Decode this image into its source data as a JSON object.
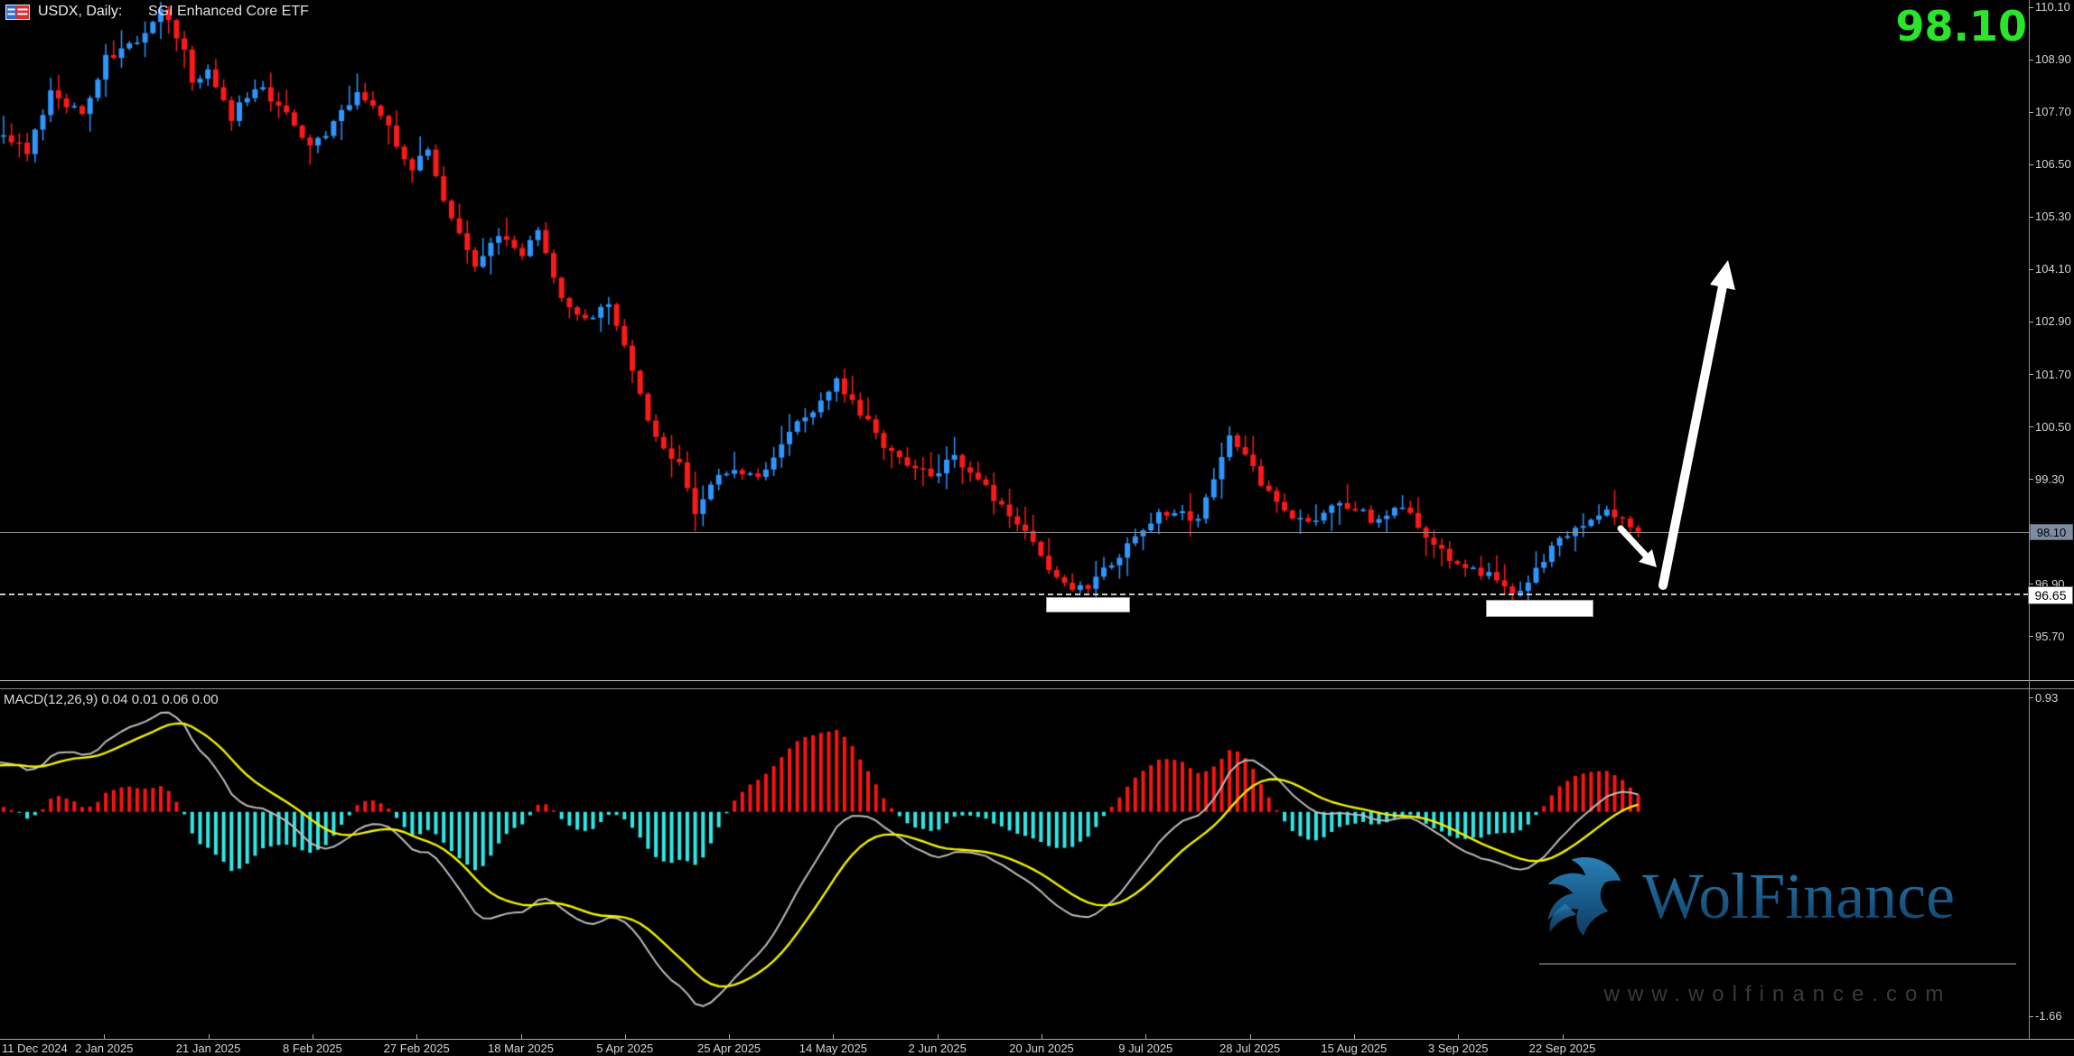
{
  "title": {
    "symbol_timeframe": "USDX, Daily:",
    "description": "SGI Enhanced Core ETF"
  },
  "current_price_display": "98.10",
  "price_axis": {
    "labels": [
      {
        "label": "110.10",
        "value": 110.1
      },
      {
        "label": "108.90",
        "value": 108.9
      },
      {
        "label": "107.70",
        "value": 107.7
      },
      {
        "label": "106.50",
        "value": 106.5
      },
      {
        "label": "105.30",
        "value": 105.3
      },
      {
        "label": "104.10",
        "value": 104.1
      },
      {
        "label": "102.90",
        "value": 102.9
      },
      {
        "label": "101.70",
        "value": 101.7
      },
      {
        "label": "100.50",
        "value": 100.5
      },
      {
        "label": "99.30",
        "value": 99.3
      },
      {
        "label": "96.90",
        "value": 96.9
      },
      {
        "label": "95.70",
        "value": 95.7
      }
    ],
    "price_tag_label": "98.10",
    "level_tag_label": "96.65"
  },
  "time_axis": {
    "labels": [
      "11 Dec 2024",
      "2 Jan 2025",
      "21 Jan 2025",
      "8 Feb 2025",
      "27 Feb 2025",
      "18 Mar 2025",
      "5 Apr 2025",
      "25 Apr 2025",
      "14 May 2025",
      "2 Jun 2025",
      "20 Jun 2025",
      "9 Jul 2025",
      "28 Jul 2025",
      "15 Aug 2025",
      "3 Sep 2025",
      "22 Sep 2025"
    ]
  },
  "macd_panel": {
    "title_full": "MACD(12,26,9) 0.04 0.01 0.06 0.00",
    "name": "MACD",
    "params": "12,26,9",
    "values": [
      "0.04",
      "0.01",
      "0.06",
      "0.00"
    ],
    "max_label": "0.93",
    "min_label": "-1.66"
  },
  "watermark": {
    "brand": "WolFinance",
    "url": "www.wolfinance.com"
  },
  "colors": {
    "background": "#000000",
    "candle_up": "#2e96ff",
    "candle_down": "#fa1a1a",
    "macd_hist_up": "#f81414",
    "macd_hist_down": "#2fe8e8",
    "macd_line": "#bcbcbc",
    "signal_line": "#f2f200",
    "axis_text": "#d4d4d4",
    "axis_line": "#9a9a9a",
    "current_price_text": "#2be52b",
    "price_tag_bg": "#7d8ca2",
    "level_line_dashed": "#c8c8c8",
    "current_price_line": "#8a8a8a",
    "annotation_white": "#ffffff",
    "watermark_top": "#2a80b6",
    "watermark_bottom": "#0c3a62"
  },
  "chart_data": {
    "type": "candlestick",
    "symbol": "USDX",
    "timeframe": "Daily",
    "description": "SGI Enhanced Core ETF",
    "title": "USDX, Daily: SGI Enhanced Core ETF",
    "current_price": 98.1,
    "y_axis": {
      "tick_labels": [
        110.1,
        108.9,
        107.7,
        106.5,
        105.3,
        104.1,
        102.9,
        101.7,
        100.5,
        99.3,
        96.9,
        95.7
      ],
      "step": 1.2
    },
    "x_axis_dates": [
      "11 Dec 2024",
      "2 Jan 2025",
      "21 Jan 2025",
      "8 Feb 2025",
      "27 Feb 2025",
      "18 Mar 2025",
      "5 Apr 2025",
      "25 Apr 2025",
      "14 May 2025",
      "2 Jun 2025",
      "20 Jun 2025",
      "9 Jul 2025",
      "28 Jul 2025",
      "15 Aug 2025",
      "3 Sep 2025",
      "22 Sep 2025"
    ],
    "levels": [
      {
        "price": 98.1,
        "style": "solid",
        "note": "current price line"
      },
      {
        "price": 96.65,
        "style": "dashed",
        "note": "support level"
      }
    ],
    "support_zones": [
      {
        "start_index": 133,
        "end_index": 143,
        "top_price": 96.6,
        "bottom_price": 96.25
      },
      {
        "start_index": 189,
        "end_index": 202,
        "top_price": 96.55,
        "bottom_price": 96.15
      }
    ],
    "annotations": {
      "small_arrow": "white arrow pointing down-right into the September low near 96.65 support",
      "big_arrow": "large white arrow projecting up from the support bounce toward ~104"
    },
    "candle_count": 209,
    "price_path": [
      [
        -40,
        104.6
      ],
      [
        -30,
        105.3
      ],
      [
        -20,
        105.9
      ],
      [
        -10,
        106.5
      ],
      [
        0,
        107.1
      ],
      [
        3,
        106.8
      ],
      [
        6,
        108.2
      ],
      [
        10,
        107.6
      ],
      [
        13,
        108.9
      ],
      [
        17,
        109.3
      ],
      [
        20,
        110.0
      ],
      [
        23,
        109.2
      ],
      [
        24,
        108.4
      ],
      [
        26,
        108.7
      ],
      [
        29,
        107.6
      ],
      [
        32,
        108.3
      ],
      [
        35,
        107.9
      ],
      [
        39,
        106.9
      ],
      [
        42,
        107.4
      ],
      [
        45,
        108.2
      ],
      [
        49,
        107.3
      ],
      [
        52,
        106.4
      ],
      [
        54,
        106.9
      ],
      [
        57,
        105.2
      ],
      [
        60,
        104.2
      ],
      [
        63,
        104.9
      ],
      [
        66,
        104.5
      ],
      [
        68,
        105.0
      ],
      [
        71,
        103.4
      ],
      [
        74,
        102.9
      ],
      [
        77,
        103.3
      ],
      [
        79,
        102.4
      ],
      [
        82,
        100.6
      ],
      [
        84,
        100.0
      ],
      [
        86,
        99.7
      ],
      [
        88,
        98.6
      ],
      [
        90,
        99.2
      ],
      [
        93,
        99.6
      ],
      [
        96,
        99.3
      ],
      [
        99,
        100.2
      ],
      [
        103,
        100.9
      ],
      [
        106,
        101.6
      ],
      [
        109,
        100.8
      ],
      [
        112,
        100.1
      ],
      [
        115,
        99.7
      ],
      [
        118,
        99.4
      ],
      [
        121,
        99.8
      ],
      [
        124,
        99.3
      ],
      [
        127,
        98.7
      ],
      [
        130,
        98.2
      ],
      [
        133,
        97.2
      ],
      [
        136,
        96.75
      ],
      [
        138,
        96.9
      ],
      [
        141,
        97.4
      ],
      [
        144,
        97.9
      ],
      [
        147,
        98.5
      ],
      [
        150,
        98.6
      ],
      [
        152,
        98.3
      ],
      [
        154,
        99.3
      ],
      [
        156,
        100.4
      ],
      [
        158,
        99.8
      ],
      [
        160,
        99.2
      ],
      [
        163,
        98.5
      ],
      [
        166,
        98.3
      ],
      [
        169,
        98.8
      ],
      [
        172,
        98.6
      ],
      [
        175,
        98.3
      ],
      [
        178,
        98.7
      ],
      [
        181,
        98.0
      ],
      [
        184,
        97.5
      ],
      [
        187,
        97.3
      ],
      [
        190,
        97.0
      ],
      [
        192,
        96.75
      ],
      [
        194,
        96.9
      ],
      [
        196,
        97.5
      ],
      [
        198,
        98.0
      ],
      [
        201,
        98.3
      ],
      [
        204,
        98.6
      ],
      [
        206,
        98.3
      ],
      [
        208,
        98.1
      ]
    ],
    "macd": {
      "params": [
        12,
        26,
        9
      ],
      "display_range": [
        -1.66,
        0.93
      ],
      "latest_values": [
        0.04,
        0.01,
        0.06,
        0.0
      ],
      "legend_position": "top-left of indicator pane"
    }
  }
}
